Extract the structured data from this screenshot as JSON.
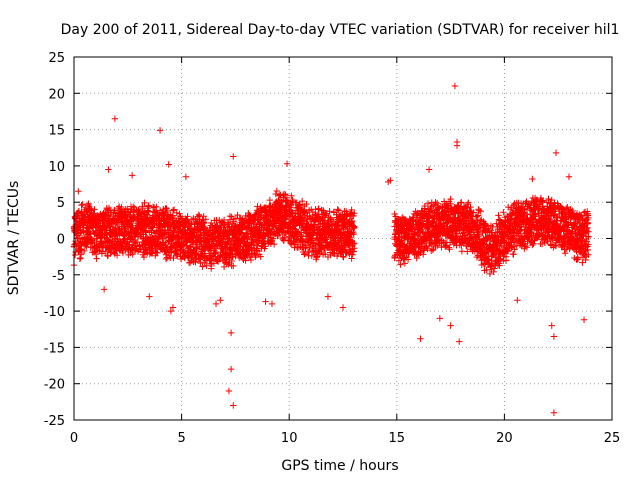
{
  "chart_data": {
    "type": "scatter",
    "title": "Day 200 of 2011, Sidereal Day-to-day VTEC variation (SDTVAR) for receiver hil1",
    "xlabel": "GPS time / hours",
    "ylabel": "SDTVAR / TECUs",
    "xlim": [
      0,
      25
    ],
    "ylim": [
      -25,
      25
    ],
    "xticks": [
      "0",
      "5",
      "10",
      "15",
      "20",
      "25"
    ],
    "yticks": [
      "25",
      "20",
      "15",
      "10",
      "5",
      "0",
      "-5",
      "-10",
      "-15",
      "-20",
      "-25"
    ],
    "grid": true,
    "marker": "+",
    "color": "#ff0000",
    "series": [
      {
        "name": "SDTVAR",
        "x": [
          0.1,
          0.3,
          0.6,
          0.9,
          1.2,
          1.5,
          1.8,
          2.1,
          2.4,
          2.7,
          3.0,
          3.3,
          3.6,
          3.9,
          4.2,
          4.5,
          4.8,
          5.1,
          5.4,
          5.7,
          6.0,
          6.3,
          6.6,
          6.9,
          7.2,
          7.5,
          7.8,
          8.1,
          8.4,
          8.7,
          9.0,
          9.3,
          9.6,
          9.9,
          10.2,
          10.5,
          10.8,
          11.1,
          11.4,
          11.7,
          12.0,
          12.3,
          12.6,
          12.9,
          14.9,
          15.2,
          15.5,
          15.8,
          16.1,
          16.4,
          16.7,
          17.0,
          17.3,
          17.6,
          17.9,
          18.2,
          18.5,
          18.8,
          19.1,
          19.4,
          19.7,
          20.0,
          20.3,
          20.6,
          20.9,
          21.2,
          21.5,
          21.8,
          22.1,
          22.4,
          22.7,
          23.0,
          23.3,
          23.6,
          23.9,
          1.9,
          4.0,
          7.4,
          7.3,
          7.3,
          7.4,
          7.2,
          17.7,
          17.8,
          17.8,
          22.3,
          22.4,
          22.2,
          22.3,
          1.6,
          2.7,
          4.4,
          4.6,
          4.5,
          5.2,
          9.2,
          9.9,
          14.6,
          16.1,
          16.5,
          17.0,
          17.5,
          17.9,
          20.6,
          21.3,
          23.0,
          23.7,
          0.2,
          1.4,
          3.5,
          6.6,
          6.8,
          8.9,
          11.8,
          14.7,
          12.5
        ],
        "y": [
          1.2,
          0.8,
          1.5,
          0.9,
          0.6,
          1.1,
          0.7,
          1.4,
          1.2,
          1.0,
          1.3,
          1.1,
          0.9,
          1.0,
          0.8,
          0.5,
          0.3,
          0.1,
          -0.2,
          0.2,
          -0.3,
          -0.5,
          -0.8,
          -0.6,
          -0.4,
          -0.2,
          0.0,
          0.3,
          0.6,
          1.2,
          2.0,
          2.8,
          3.2,
          3.0,
          2.4,
          1.8,
          1.2,
          0.8,
          0.6,
          0.9,
          0.5,
          0.7,
          0.4,
          0.8,
          0.2,
          -0.3,
          -0.1,
          0.6,
          1.0,
          1.3,
          1.6,
          1.9,
          2.1,
          2.2,
          2.0,
          1.6,
          1.2,
          0.5,
          -0.8,
          -1.6,
          -0.6,
          0.3,
          1.2,
          1.6,
          1.9,
          2.1,
          2.3,
          2.5,
          2.4,
          2.0,
          1.5,
          1.1,
          0.6,
          0.3,
          0.2,
          16.5,
          14.9,
          -23.0,
          -18.0,
          -13.0,
          11.3,
          -21.0,
          21.0,
          12.8,
          13.3,
          -24.0,
          11.8,
          -12.0,
          -13.5,
          9.5,
          8.7,
          10.2,
          -9.5,
          -10.0,
          8.5,
          -9.0,
          10.3,
          7.8,
          -13.8,
          9.5,
          -11.0,
          -12.0,
          -14.2,
          -8.5,
          8.2,
          8.5,
          -11.2,
          6.5,
          -7.0,
          -8.0,
          -9.0,
          -8.5,
          -8.7,
          -8.0,
          8.0,
          -9.5
        ]
      }
    ]
  }
}
